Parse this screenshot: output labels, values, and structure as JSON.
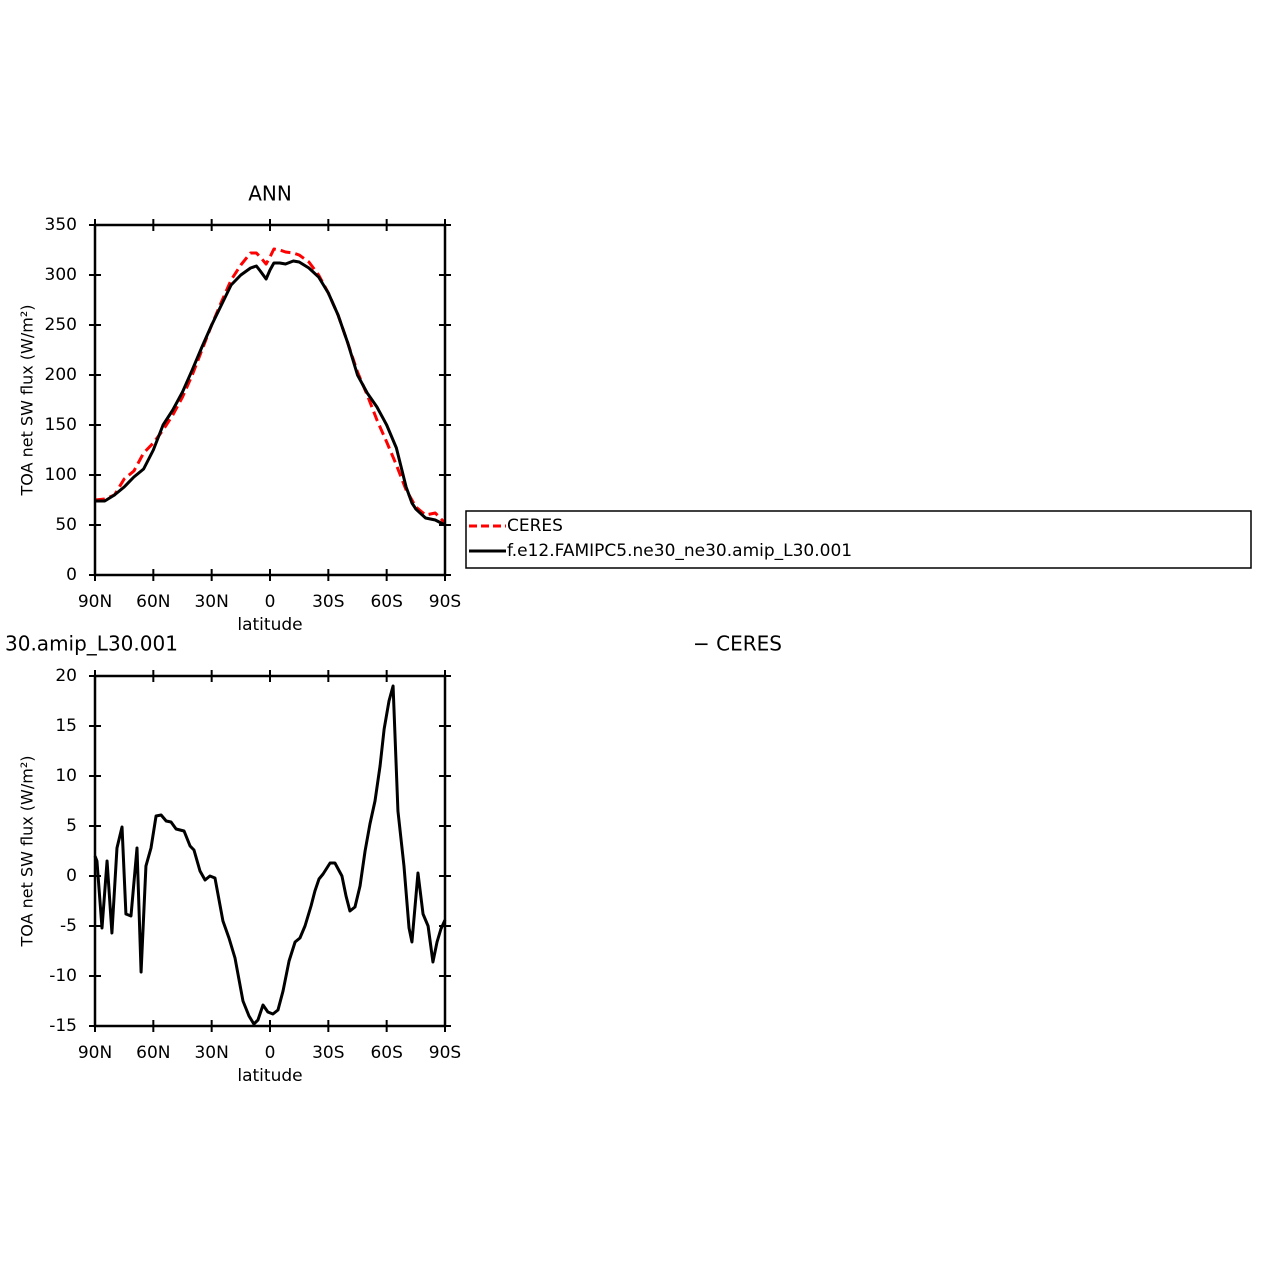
{
  "chart_data": [
    {
      "type": "line",
      "title": "ANN",
      "xlabel": "latitude",
      "ylabel": "TOA net SW flux (W/m²)",
      "x": [
        90,
        85,
        80,
        75,
        70,
        65,
        60,
        55,
        50,
        45,
        40,
        35,
        30,
        25,
        20,
        15,
        10,
        7,
        5,
        2,
        0,
        -2,
        -5,
        -8,
        -12,
        -15,
        -20,
        -25,
        -30,
        -35,
        -40,
        -45,
        -50,
        -55,
        -60,
        -65,
        -70,
        -73,
        -75,
        -80,
        -85,
        -88,
        -90
      ],
      "series": [
        {
          "name": "CERES",
          "color": "#ff0000",
          "dash": true,
          "values": [
            75,
            76,
            80,
            96,
            104,
            122,
            132,
            145,
            160,
            178,
            200,
            225,
            250,
            273,
            295,
            310,
            322,
            322,
            318,
            311,
            318,
            326,
            325,
            323,
            322,
            320,
            313,
            300,
            282,
            260,
            232,
            203,
            180,
            155,
            133,
            110,
            85,
            75,
            68,
            60,
            62,
            56,
            52
          ]
        },
        {
          "name": "f.e12.FAMIPC5.ne30_ne30.amip_L30.001",
          "color": "#000000",
          "dash": false,
          "values": [
            74,
            74,
            80,
            88,
            98,
            106,
            125,
            150,
            165,
            183,
            205,
            228,
            250,
            270,
            290,
            300,
            307,
            309,
            304,
            296,
            305,
            312,
            312,
            311,
            314,
            313,
            307,
            298,
            282,
            260,
            232,
            200,
            182,
            168,
            150,
            127,
            88,
            72,
            66,
            57,
            55,
            52,
            50
          ]
        }
      ],
      "xlim": [
        90,
        -90
      ],
      "xticks": [
        {
          "value": 90,
          "label": "90N"
        },
        {
          "value": 60,
          "label": "60N"
        },
        {
          "value": 30,
          "label": "30N"
        },
        0,
        {
          "value": -30,
          "label": "30S"
        },
        {
          "value": -60,
          "label": "60S"
        },
        {
          "value": -90,
          "label": "90S"
        }
      ],
      "ylim": [
        0,
        350
      ],
      "yticks": [
        0,
        50,
        100,
        150,
        200,
        250,
        300,
        350
      ],
      "legend": "right"
    },
    {
      "type": "line",
      "title": "30.amip_L30.001",
      "title_right": "− CERES",
      "xlabel": "latitude",
      "ylabel": "TOA net SW flux (W/m²)",
      "x": [
        90,
        89.0,
        86.4,
        83.8,
        81.3,
        78.7,
        76.1,
        74.1,
        71.5,
        68.4,
        66.3,
        63.8,
        61.2,
        58.6,
        56.0,
        53.4,
        50.9,
        48.3,
        44.2,
        41.1,
        39.1,
        36.0,
        33.4,
        30.9,
        28.3,
        24.2,
        21.1,
        18.0,
        13.9,
        10.8,
        8.3,
        6.2,
        3.6,
        1.1,
        -1.5,
        -4.1,
        -6.7,
        -9.8,
        -12.9,
        -15.4,
        -18.0,
        -21.1,
        -23.1,
        -25.2,
        -27.3,
        -30.9,
        -33.4,
        -37.0,
        -39.1,
        -41.1,
        -43.7,
        -46.3,
        -48.9,
        -51.4,
        -54.0,
        -56.6,
        -58.7,
        -61.2,
        -63.3,
        -65.8,
        -68.9,
        -71.5,
        -73.0,
        -76.1,
        -78.7,
        -81.3,
        -83.8,
        -85.9,
        -87.9,
        -90
      ],
      "values": [
        2,
        1.5,
        -5.2,
        1.5,
        -5.7,
        2.8,
        4.9,
        -3.8,
        -4.0,
        2.8,
        -9.6,
        1,
        2.8,
        6,
        6.1,
        5.5,
        5.4,
        4.7,
        4.5,
        3.0,
        2.6,
        0.5,
        -0.4,
        0,
        -0.2,
        -4.5,
        -6.2,
        -8.2,
        -12.5,
        -14,
        -14.8,
        -14.4,
        -12.9,
        -13.6,
        -13.8,
        -13.4,
        -11.5,
        -8.5,
        -6.6,
        -6.2,
        -5.0,
        -3.0,
        -1.5,
        -0.3,
        0.2,
        1.3,
        1.3,
        0.0,
        -2.0,
        -3.5,
        -3.1,
        -1,
        2.5,
        5.2,
        7.5,
        11,
        14.7,
        17.5,
        19,
        6.5,
        1,
        -5.2,
        -6.6,
        0.3,
        -3.8,
        -5.0,
        -8.6,
        -6.6,
        -5.3,
        -4.4
      ],
      "color": "#000000",
      "xlim": [
        90,
        -90
      ],
      "xticks": [
        {
          "value": 90,
          "label": "90N"
        },
        {
          "value": 60,
          "label": "60N"
        },
        {
          "value": 30,
          "label": "30N"
        },
        0,
        {
          "value": -30,
          "label": "30S"
        },
        {
          "value": -60,
          "label": "60S"
        },
        {
          "value": -90,
          "label": "90S"
        }
      ],
      "ylim": [
        -15,
        20
      ],
      "yticks": [
        -15,
        -10,
        -5,
        0,
        5,
        10,
        15,
        20
      ]
    }
  ]
}
